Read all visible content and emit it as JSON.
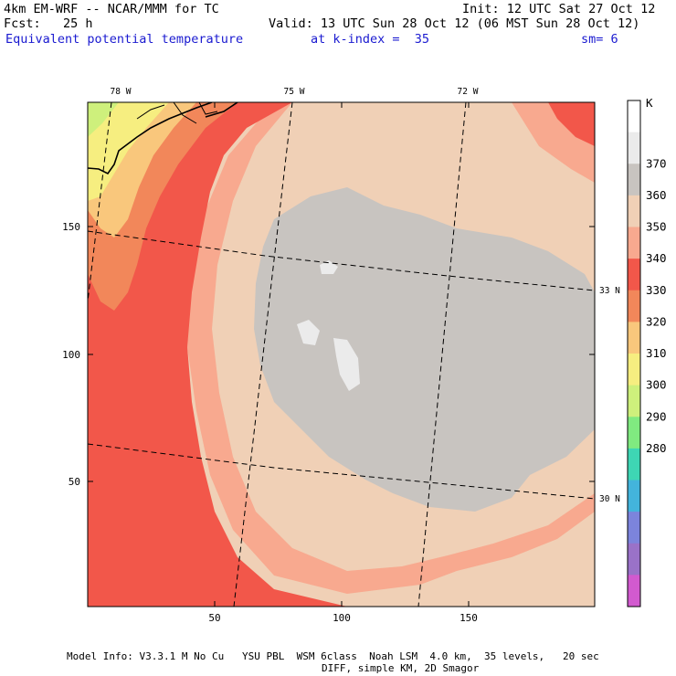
{
  "header": {
    "model_line": "4km EM-WRF -- NCAR/MMM for TC",
    "fcst_line": "Fcst:   25 h",
    "init_line": "Init: 12 UTC Sat 27 Oct 12",
    "valid_line": "Valid: 13 UTC Sun 28 Oct 12 (06 MST Sun 28 Oct 12)",
    "field_name": "Equivalent potential temperature",
    "level": "at k-index =  35",
    "smoothing": "sm= 6"
  },
  "map": {
    "lon_labels": [
      "78 W",
      "75 W",
      "72 W"
    ],
    "lat_labels": [
      "33 N",
      "30 N"
    ],
    "x_ticks": [
      "50",
      "100",
      "150"
    ],
    "y_ticks": [
      "150",
      "100",
      "50"
    ]
  },
  "colorbar": {
    "unit": "K",
    "labels": [
      "370",
      "360",
      "350",
      "340",
      "330",
      "320",
      "310",
      "300",
      "290",
      "280"
    ],
    "colors": [
      "#ffffff",
      "#ebebeb",
      "#c8c4c0",
      "#f0d0b6",
      "#f8a98f",
      "#f2574a",
      "#f2875a",
      "#f9c77c",
      "#f6ee80",
      "#cef07c",
      "#80ea80",
      "#3ed6b4",
      "#43b4dc",
      "#7c84dc",
      "#9a72c8",
      "#d25acf"
    ]
  },
  "footer": {
    "line1": "Model Info: V3.3.1 M No Cu   YSU PBL  WSM 6class  Noah LSM  4.0 km,  35 levels,   20 sec",
    "line2": "DIFF, simple KM, 2D Smagor"
  }
}
